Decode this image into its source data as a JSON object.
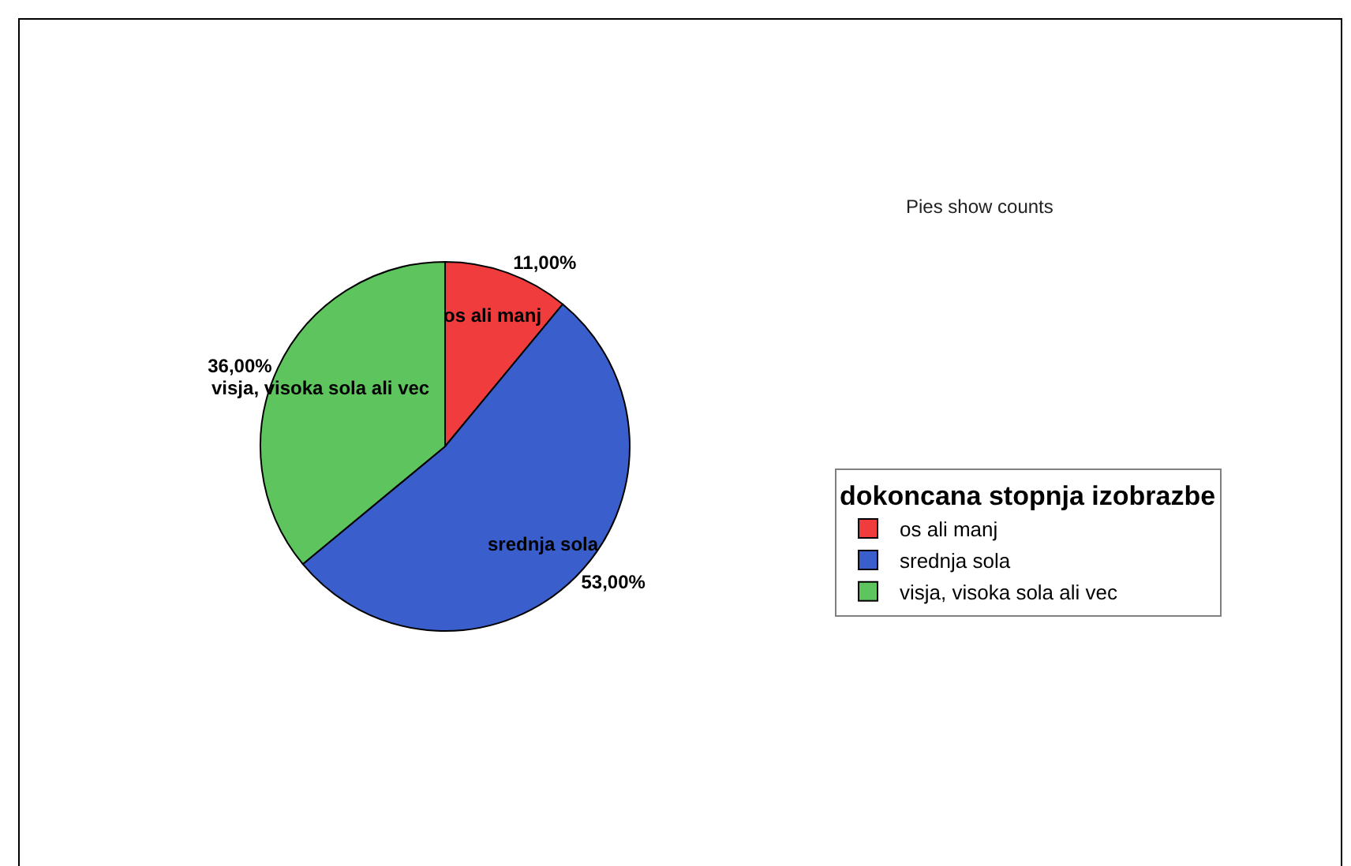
{
  "chart_data": {
    "type": "pie",
    "categories": [
      "os ali manj",
      "srednja sola",
      "visja, visoka sola ali vec"
    ],
    "values": [
      11,
      53,
      36
    ],
    "colors": [
      "#f03c3c",
      "#3a5fcd",
      "#5ec45e"
    ],
    "value_labels": [
      "11,00%",
      "53,00%",
      "36,00%"
    ],
    "legend_title": "dokoncana stopnja izobrazbe",
    "legend": "right",
    "annotations": [
      "Pies show counts"
    ]
  }
}
